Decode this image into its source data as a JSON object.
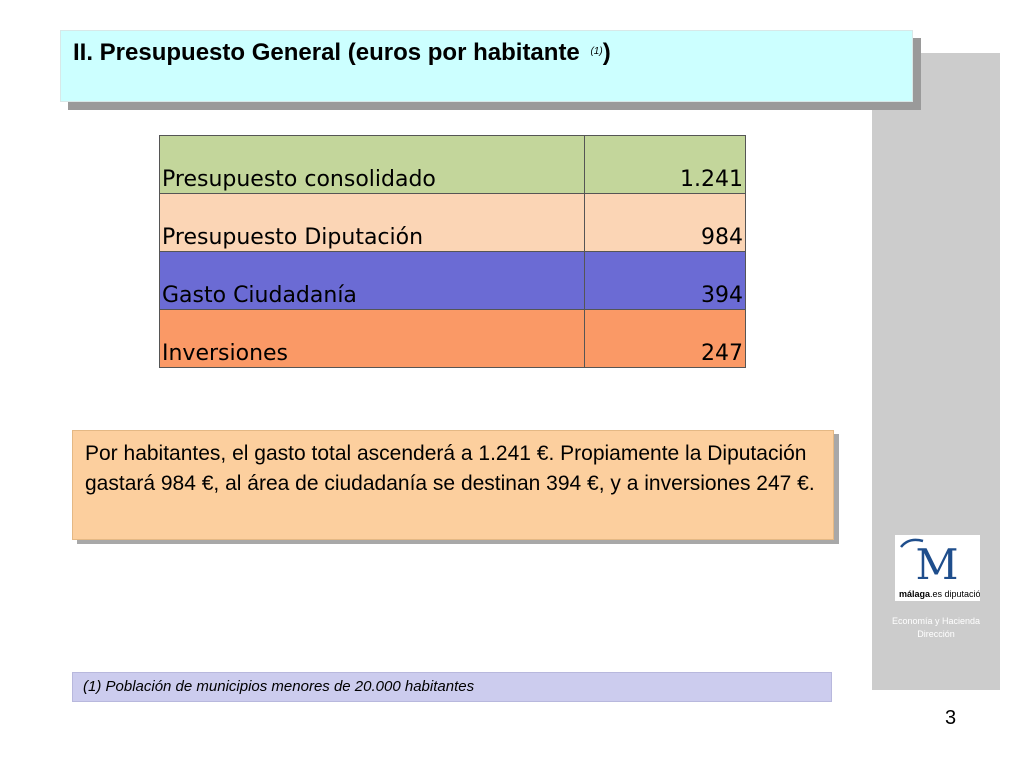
{
  "slide": {
    "title": "II. Presupuesto General (euros por habitante ",
    "title_note": "(1)",
    "title_close": ")",
    "page_number": "3"
  },
  "table": {
    "rows": [
      {
        "label": "Presupuesto consolidado",
        "value": "1.241",
        "color": "#c3d69b"
      },
      {
        "label": "Presupuesto Diputación",
        "value": "984",
        "color": "#fbd5b5"
      },
      {
        "label": "Gasto Ciudadanía",
        "value": "394",
        "color": "#6b6bd4"
      },
      {
        "label": "Inversiones",
        "value": "247",
        "color": "#fa9966"
      }
    ]
  },
  "summary": {
    "text": "Por habitantes, el gasto total ascenderá a 1.241 €. Propiamente la Diputación gastará 984 €, al área de ciudadanía se destinan 394 €, y a inversiones 247 €."
  },
  "sidebar": {
    "logo_letter": "M",
    "logo_brand": "málaga",
    "logo_suffix": ".es diputación",
    "caption_line1": "Economía y Hacienda",
    "caption_line2": "Dirección"
  },
  "footnote": {
    "text": "(1) Población de municipios menores de 20.000 habitantes"
  },
  "colors": {
    "title_bg": "#ccffff",
    "summary_bg": "#fccf9e",
    "footnote_bg": "#ccccee",
    "sidebar_bg": "#cccccc",
    "logo_blue": "#1f4e8c"
  }
}
